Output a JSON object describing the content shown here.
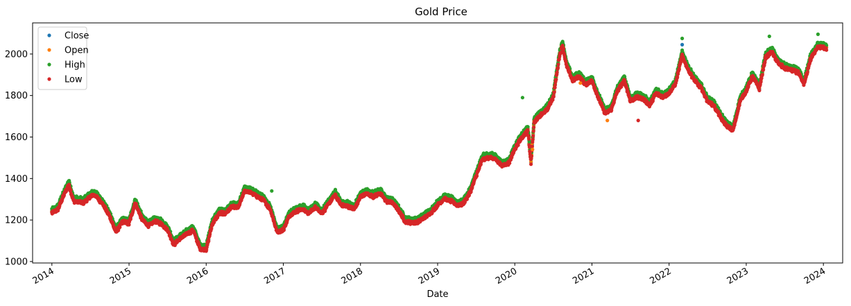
{
  "chart_data": {
    "type": "scatter",
    "title": "Gold Price",
    "xlabel": "Date",
    "ylabel": "",
    "xlim": [
      2013.75,
      2024.25
    ],
    "ylim": [
      993,
      2150
    ],
    "x_ticks": [
      {
        "value": 2014,
        "label": "2014"
      },
      {
        "value": 2015,
        "label": "2015"
      },
      {
        "value": 2016,
        "label": "2016"
      },
      {
        "value": 2017,
        "label": "2017"
      },
      {
        "value": 2018,
        "label": "2018"
      },
      {
        "value": 2019,
        "label": "2019"
      },
      {
        "value": 2020,
        "label": "2020"
      },
      {
        "value": 2021,
        "label": "2021"
      },
      {
        "value": 2022,
        "label": "2022"
      },
      {
        "value": 2023,
        "label": "2023"
      },
      {
        "value": 2024,
        "label": "2024"
      }
    ],
    "y_ticks": [
      {
        "value": 1000,
        "label": "1000"
      },
      {
        "value": 1200,
        "label": "1200"
      },
      {
        "value": 1400,
        "label": "1400"
      },
      {
        "value": 1600,
        "label": "1600"
      },
      {
        "value": 1800,
        "label": "1800"
      },
      {
        "value": 2000,
        "label": "2000"
      }
    ],
    "legend_position": "top-left",
    "series": [
      {
        "name": "Close",
        "color": "#1f77b4"
      },
      {
        "name": "Open",
        "color": "#ff7f0e"
      },
      {
        "name": "High",
        "color": "#2ca02c"
      },
      {
        "name": "Low",
        "color": "#d62728"
      }
    ],
    "price_path": [
      [
        2014.0,
        1240
      ],
      [
        2014.08,
        1260
      ],
      [
        2014.17,
        1340
      ],
      [
        2014.22,
        1380
      ],
      [
        2014.28,
        1300
      ],
      [
        2014.4,
        1290
      ],
      [
        2014.5,
        1320
      ],
      [
        2014.55,
        1330
      ],
      [
        2014.65,
        1290
      ],
      [
        2014.75,
        1225
      ],
      [
        2014.83,
        1150
      ],
      [
        2014.92,
        1200
      ],
      [
        2015.0,
        1190
      ],
      [
        2015.08,
        1290
      ],
      [
        2015.17,
        1210
      ],
      [
        2015.25,
        1180
      ],
      [
        2015.33,
        1200
      ],
      [
        2015.42,
        1190
      ],
      [
        2015.5,
        1160
      ],
      [
        2015.58,
        1090
      ],
      [
        2015.67,
        1120
      ],
      [
        2015.75,
        1140
      ],
      [
        2015.83,
        1160
      ],
      [
        2015.92,
        1070
      ],
      [
        2016.0,
        1065
      ],
      [
        2016.08,
        1190
      ],
      [
        2016.17,
        1240
      ],
      [
        2016.25,
        1240
      ],
      [
        2016.33,
        1270
      ],
      [
        2016.42,
        1270
      ],
      [
        2016.5,
        1350
      ],
      [
        2016.58,
        1340
      ],
      [
        2016.67,
        1320
      ],
      [
        2016.75,
        1300
      ],
      [
        2016.83,
        1260
      ],
      [
        2016.92,
        1150
      ],
      [
        2017.0,
        1160
      ],
      [
        2017.08,
        1230
      ],
      [
        2017.17,
        1250
      ],
      [
        2017.25,
        1260
      ],
      [
        2017.33,
        1240
      ],
      [
        2017.42,
        1270
      ],
      [
        2017.5,
        1240
      ],
      [
        2017.58,
        1280
      ],
      [
        2017.67,
        1330
      ],
      [
        2017.75,
        1280
      ],
      [
        2017.83,
        1275
      ],
      [
        2017.92,
        1260
      ],
      [
        2018.0,
        1320
      ],
      [
        2018.08,
        1335
      ],
      [
        2018.17,
        1320
      ],
      [
        2018.25,
        1340
      ],
      [
        2018.33,
        1300
      ],
      [
        2018.42,
        1290
      ],
      [
        2018.5,
        1250
      ],
      [
        2018.58,
        1200
      ],
      [
        2018.67,
        1195
      ],
      [
        2018.75,
        1200
      ],
      [
        2018.83,
        1220
      ],
      [
        2018.92,
        1245
      ],
      [
        2019.0,
        1280
      ],
      [
        2019.08,
        1310
      ],
      [
        2019.17,
        1300
      ],
      [
        2019.25,
        1280
      ],
      [
        2019.33,
        1285
      ],
      [
        2019.42,
        1340
      ],
      [
        2019.5,
        1420
      ],
      [
        2019.58,
        1500
      ],
      [
        2019.67,
        1510
      ],
      [
        2019.75,
        1500
      ],
      [
        2019.83,
        1470
      ],
      [
        2019.92,
        1480
      ],
      [
        2020.0,
        1550
      ],
      [
        2020.08,
        1600
      ],
      [
        2020.17,
        1640
      ],
      [
        2020.21,
        1480
      ],
      [
        2020.25,
        1680
      ],
      [
        2020.33,
        1710
      ],
      [
        2020.42,
        1740
      ],
      [
        2020.5,
        1800
      ],
      [
        2020.58,
        2000
      ],
      [
        2020.62,
        2050
      ],
      [
        2020.67,
        1950
      ],
      [
        2020.75,
        1880
      ],
      [
        2020.83,
        1900
      ],
      [
        2020.92,
        1860
      ],
      [
        2021.0,
        1880
      ],
      [
        2021.08,
        1800
      ],
      [
        2021.17,
        1720
      ],
      [
        2021.25,
        1740
      ],
      [
        2021.33,
        1830
      ],
      [
        2021.42,
        1880
      ],
      [
        2021.5,
        1780
      ],
      [
        2021.58,
        1800
      ],
      [
        2021.67,
        1790
      ],
      [
        2021.75,
        1760
      ],
      [
        2021.83,
        1820
      ],
      [
        2021.92,
        1800
      ],
      [
        2022.0,
        1820
      ],
      [
        2022.08,
        1860
      ],
      [
        2022.17,
        2000
      ],
      [
        2022.25,
        1930
      ],
      [
        2022.33,
        1880
      ],
      [
        2022.42,
        1840
      ],
      [
        2022.5,
        1780
      ],
      [
        2022.58,
        1760
      ],
      [
        2022.67,
        1700
      ],
      [
        2022.75,
        1660
      ],
      [
        2022.83,
        1640
      ],
      [
        2022.92,
        1780
      ],
      [
        2023.0,
        1830
      ],
      [
        2023.08,
        1900
      ],
      [
        2023.17,
        1840
      ],
      [
        2023.25,
        1990
      ],
      [
        2023.33,
        2020
      ],
      [
        2023.42,
        1960
      ],
      [
        2023.5,
        1940
      ],
      [
        2023.58,
        1930
      ],
      [
        2023.67,
        1920
      ],
      [
        2023.75,
        1860
      ],
      [
        2023.83,
        1980
      ],
      [
        2023.92,
        2040
      ],
      [
        2024.0,
        2040
      ],
      [
        2024.04,
        2030
      ]
    ],
    "spikes": [
      {
        "x": 2016.85,
        "series": "High",
        "value": 1340
      },
      {
        "x": 2020.1,
        "series": "High",
        "value": 1790
      },
      {
        "x": 2020.23,
        "series": "Open",
        "value": 1540
      },
      {
        "x": 2020.85,
        "series": "Open",
        "value": 1860
      },
      {
        "x": 2021.2,
        "series": "Open",
        "value": 1680
      },
      {
        "x": 2021.6,
        "series": "Low",
        "value": 1680
      },
      {
        "x": 2022.17,
        "series": "Close",
        "value": 2045
      },
      {
        "x": 2022.17,
        "series": "High",
        "value": 2075
      },
      {
        "x": 2023.3,
        "series": "High",
        "value": 2085
      },
      {
        "x": 2023.93,
        "series": "High",
        "value": 2095
      }
    ]
  }
}
